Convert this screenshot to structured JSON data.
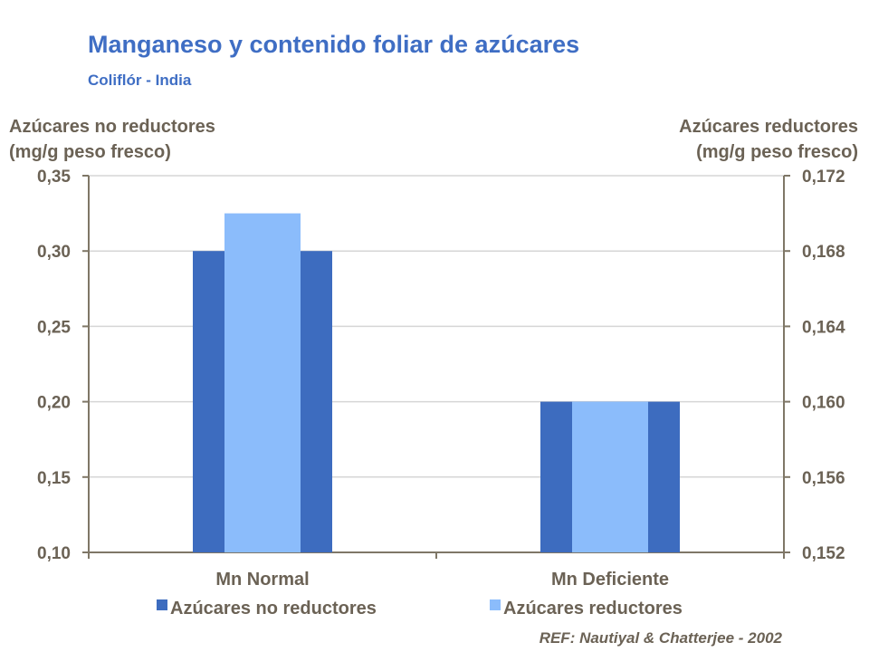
{
  "chart_data": {
    "type": "bar",
    "title": "Manganeso y contenido foliar de azúcares",
    "subtitle": "Coliflór - India",
    "ylabel": [
      "Azúcares no reductores",
      "(mg/g peso fresco)"
    ],
    "y2label": [
      "Azúcares reductores",
      "(mg/g peso fresco)"
    ],
    "categories": [
      "Mn Normal",
      "Mn Deficiente"
    ],
    "ylim": [
      0.1,
      0.35
    ],
    "y2lim": [
      0.152,
      0.172
    ],
    "yticks": [
      "0,10",
      "0,15",
      "0,20",
      "0,25",
      "0,30",
      "0,35"
    ],
    "y2ticks": [
      "0,152",
      "0,156",
      "0,160",
      "0,164",
      "0,168",
      "0,172"
    ],
    "grid": true,
    "legend": "bottom",
    "series": [
      {
        "name": "Azúcares no reductores",
        "axis": "left",
        "values": [
          0.3,
          0.2
        ],
        "color": "#3d6cbf"
      },
      {
        "name": "Azúcares reductores",
        "axis": "right",
        "values": [
          0.17,
          0.16
        ],
        "color": "#8bbcfb"
      }
    ],
    "reference": "REF: Nautiyal & Chatterjee - 2002"
  }
}
